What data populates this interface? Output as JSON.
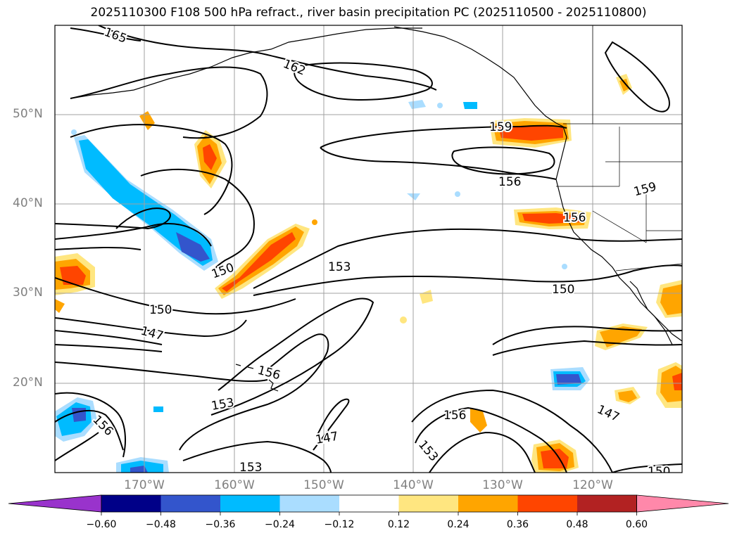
{
  "title": "2025110300 F108 500 hPa refract., river basin precipitation PC (2025110500 - 2025110800)",
  "axes": {
    "lat_labels": [
      "50°N",
      "40°N",
      "30°N",
      "20°N"
    ],
    "lon_labels": [
      "170°W",
      "160°W",
      "150°W",
      "140°W",
      "130°W",
      "120°W"
    ]
  },
  "contour_labels": [
    "165",
    "162",
    "159",
    "156",
    "159",
    "156",
    "153",
    "150",
    "150",
    "150",
    "147",
    "156",
    "153",
    "156",
    "147",
    "153",
    "156",
    "153",
    "147",
    "150"
  ],
  "colorbar": {
    "ticks": [
      "−0.60",
      "−0.48",
      "−0.36",
      "−0.24",
      "−0.12",
      "0.12",
      "0.24",
      "0.36",
      "0.48",
      "0.60"
    ],
    "colors": [
      "#9933cc",
      "#000088",
      "#3355cc",
      "#00bbff",
      "#aaddff",
      "#ffffff",
      "#ffe680",
      "#ffa500",
      "#ff4500",
      "#b22222",
      "#ff88aa"
    ]
  },
  "colors": {
    "grid": "#a0a0a0",
    "contour": "#000000",
    "blue_light": "#aaddff",
    "blue_mid": "#00bbff",
    "blue_dark": "#3355cc",
    "yellow": "#ffe680",
    "orange": "#ffa500",
    "red_orange": "#ff4500"
  }
}
